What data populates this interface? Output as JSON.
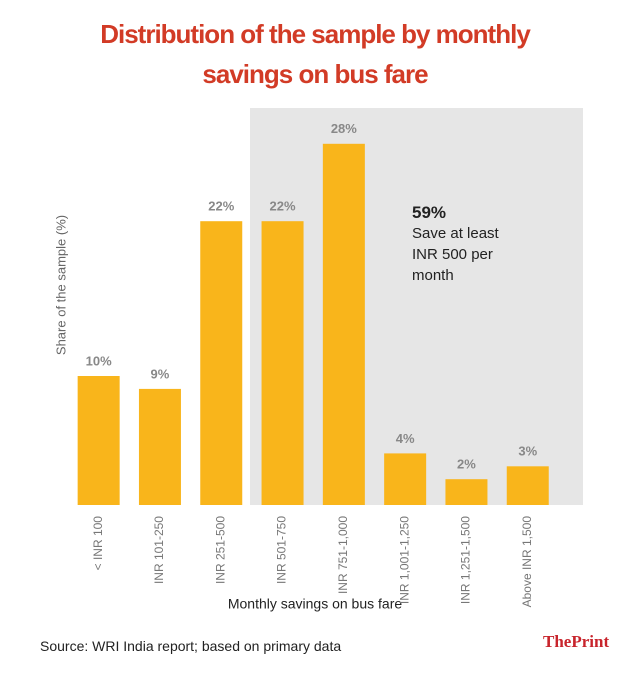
{
  "chart_data": {
    "type": "bar",
    "title": "Distribution of the sample by monthly savings on bus fare",
    "x_label": "Monthly savings on bus fare",
    "y_label": "Share of the sample (%)",
    "categories": [
      "< INR 100",
      "INR 101-250",
      "INR 251-500",
      "INR 501-750",
      "INR 751-1,000",
      "INR 1,001-1,250",
      "INR 1,251-1,500",
      "Above INR 1,500"
    ],
    "values": [
      10,
      9,
      22,
      22,
      28,
      4,
      2,
      3
    ],
    "value_labels": [
      "10%",
      "9%",
      "22%",
      "22%",
      "28%",
      "4%",
      "2%",
      "3%"
    ],
    "color": "#f9b51b",
    "ylim": [
      0,
      30
    ],
    "annotation": {
      "label": "59%",
      "text": "Save at least INR 500 per month"
    },
    "source": "Source: WRI India report; based on primary data",
    "brand": "ThePrint"
  }
}
